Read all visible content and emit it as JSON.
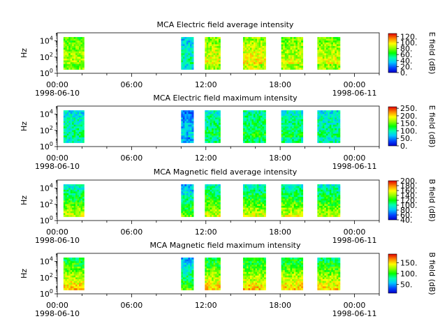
{
  "chart_data": [
    {
      "type": "heatmap",
      "title": "MCA  Electric field average intensity",
      "ylabel": "Hz",
      "yscale": "log",
      "ylim": [
        1,
        100000
      ],
      "yticks": [
        {
          "exp": "0",
          "value": 1
        },
        {
          "exp": "2",
          "value": 100
        },
        {
          "exp": "4",
          "value": 10000
        }
      ],
      "xlim": [
        "1998-06-10 00:00",
        "1998-06-11 02:00"
      ],
      "xticks": [
        {
          "time": "00:00",
          "date": "1998-06-10"
        },
        {
          "time": "06:00",
          "date": ""
        },
        {
          "time": "12:00",
          "date": ""
        },
        {
          "time": "18:00",
          "date": ""
        },
        {
          "time": "00:00",
          "date": "1998-06-11"
        }
      ],
      "colorbar": {
        "label": "E field (dB)",
        "range": [
          0,
          130
        ],
        "ticks": [
          "0.",
          "20.",
          "40.",
          "60.",
          "80.",
          "100.",
          "120."
        ]
      },
      "data_intervals": [
        {
          "start": "1998-06-10 00:30",
          "end": "1998-06-10 02:10",
          "level": 0.62
        },
        {
          "start": "1998-06-10 10:00",
          "end": "1998-06-10 11:00",
          "level": 0.35
        },
        {
          "start": "1998-06-10 11:55",
          "end": "1998-06-10 13:10",
          "level": 0.68
        },
        {
          "start": "1998-06-10 15:00",
          "end": "1998-06-10 16:50",
          "level": 0.7
        },
        {
          "start": "1998-06-10 18:05",
          "end": "1998-06-10 19:50",
          "level": 0.66
        },
        {
          "start": "1998-06-10 21:00",
          "end": "1998-06-10 22:50",
          "level": 0.66
        }
      ]
    },
    {
      "type": "heatmap",
      "title": "MCA  Electric field maximum intensity",
      "ylabel": "Hz",
      "yscale": "log",
      "ylim": [
        1,
        100000
      ],
      "yticks": [
        {
          "exp": "0",
          "value": 1
        },
        {
          "exp": "2",
          "value": 100
        },
        {
          "exp": "4",
          "value": 10000
        }
      ],
      "xlim": [
        "1998-06-10 00:00",
        "1998-06-11 02:00"
      ],
      "xticks": [
        {
          "time": "00:00",
          "date": "1998-06-10"
        },
        {
          "time": "06:00",
          "date": ""
        },
        {
          "time": "12:00",
          "date": ""
        },
        {
          "time": "18:00",
          "date": ""
        },
        {
          "time": "00:00",
          "date": "1998-06-11"
        }
      ],
      "colorbar": {
        "label": "E field (dB)",
        "range": [
          0,
          260
        ],
        "ticks": [
          "0.",
          "50.",
          "100.",
          "150.",
          "200.",
          "250."
        ]
      },
      "data_intervals": [
        {
          "start": "1998-06-10 00:30",
          "end": "1998-06-10 02:10",
          "level": 0.38
        },
        {
          "start": "1998-06-10 10:00",
          "end": "1998-06-10 11:00",
          "level": 0.25
        },
        {
          "start": "1998-06-10 11:55",
          "end": "1998-06-10 13:10",
          "level": 0.42
        },
        {
          "start": "1998-06-10 15:00",
          "end": "1998-06-10 16:50",
          "level": 0.45
        },
        {
          "start": "1998-06-10 18:05",
          "end": "1998-06-10 19:50",
          "level": 0.42
        },
        {
          "start": "1998-06-10 21:00",
          "end": "1998-06-10 22:50",
          "level": 0.38
        }
      ]
    },
    {
      "type": "heatmap",
      "title": "MCA  Magnetic field average intensity",
      "ylabel": "Hz",
      "yscale": "log",
      "ylim": [
        1,
        100000
      ],
      "yticks": [
        {
          "exp": "0",
          "value": 1
        },
        {
          "exp": "2",
          "value": 100
        },
        {
          "exp": "4",
          "value": 10000
        }
      ],
      "xlim": [
        "1998-06-10 00:00",
        "1998-06-11 02:00"
      ],
      "xticks": [
        {
          "time": "00:00",
          "date": "1998-06-10"
        },
        {
          "time": "06:00",
          "date": ""
        },
        {
          "time": "12:00",
          "date": ""
        },
        {
          "time": "18:00",
          "date": ""
        },
        {
          "time": "00:00",
          "date": "1998-06-11"
        }
      ],
      "colorbar": {
        "label": "B field (dB)",
        "range": [
          40,
          200
        ],
        "ticks": [
          "40.",
          "60.",
          "80.",
          "100.",
          "120.",
          "140.",
          "160.",
          "180.",
          "200."
        ]
      },
      "data_intervals": [
        {
          "start": "1998-06-10 00:30",
          "end": "1998-06-10 02:10",
          "level": 0.5
        },
        {
          "start": "1998-06-10 10:00",
          "end": "1998-06-10 11:00",
          "level": 0.4
        },
        {
          "start": "1998-06-10 11:55",
          "end": "1998-06-10 13:10",
          "level": 0.52
        },
        {
          "start": "1998-06-10 15:00",
          "end": "1998-06-10 16:50",
          "level": 0.52
        },
        {
          "start": "1998-06-10 18:05",
          "end": "1998-06-10 19:50",
          "level": 0.52
        },
        {
          "start": "1998-06-10 21:00",
          "end": "1998-06-10 22:50",
          "level": 0.5
        }
      ]
    },
    {
      "type": "heatmap",
      "title": "MCA  Magnetic field maximum intensity",
      "ylabel": "Hz",
      "yscale": "log",
      "ylim": [
        1,
        100000
      ],
      "yticks": [
        {
          "exp": "0",
          "value": 1
        },
        {
          "exp": "2",
          "value": 100
        },
        {
          "exp": "4",
          "value": 10000
        }
      ],
      "xlim": [
        "1998-06-10 00:00",
        "1998-06-11 02:00"
      ],
      "xticks": [
        {
          "time": "00:00",
          "date": "1998-06-10"
        },
        {
          "time": "06:00",
          "date": ""
        },
        {
          "time": "12:00",
          "date": ""
        },
        {
          "time": "18:00",
          "date": ""
        },
        {
          "time": "00:00",
          "date": "1998-06-11"
        }
      ],
      "colorbar": {
        "label": "B field (dB)",
        "range": [
          10,
          190
        ],
        "ticks": [
          "50.",
          "100.",
          "150."
        ]
      },
      "data_intervals": [
        {
          "start": "1998-06-10 00:30",
          "end": "1998-06-10 02:10",
          "level": 0.62
        },
        {
          "start": "1998-06-10 10:00",
          "end": "1998-06-10 11:00",
          "level": 0.4
        },
        {
          "start": "1998-06-10 11:55",
          "end": "1998-06-10 13:10",
          "level": 0.62
        },
        {
          "start": "1998-06-10 15:00",
          "end": "1998-06-10 16:50",
          "level": 0.62
        },
        {
          "start": "1998-06-10 18:05",
          "end": "1998-06-10 19:50",
          "level": 0.62
        },
        {
          "start": "1998-06-10 21:00",
          "end": "1998-06-10 22:50",
          "level": 0.6
        }
      ]
    }
  ]
}
